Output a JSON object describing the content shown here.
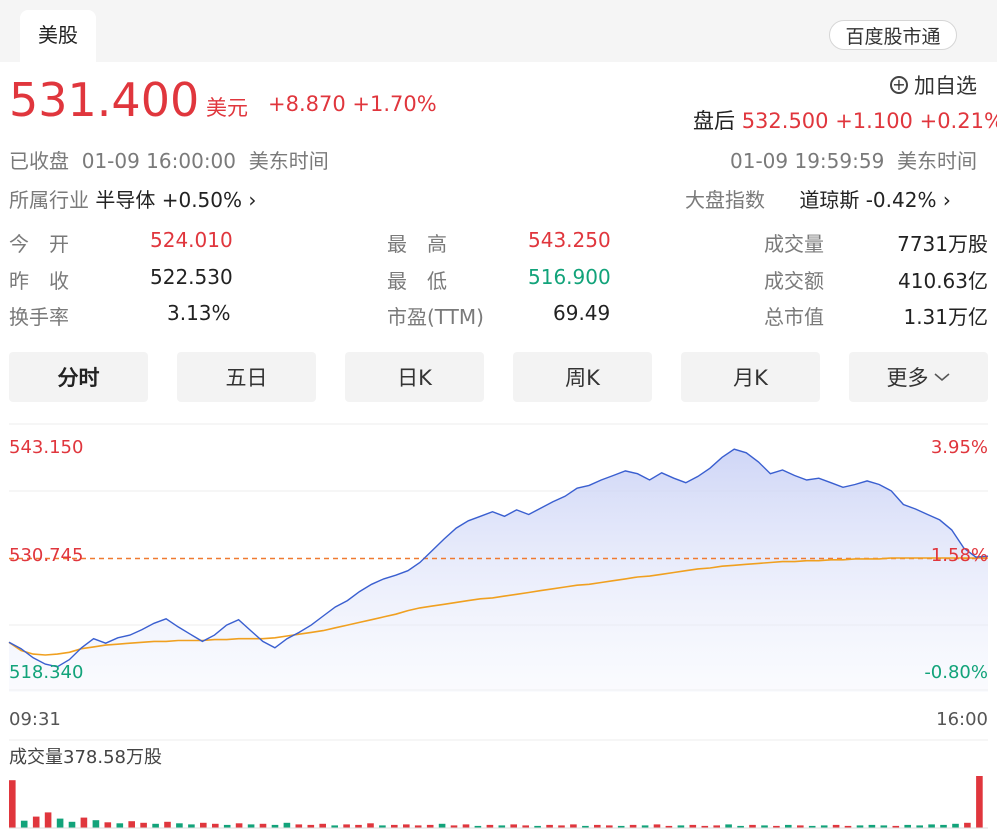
{
  "header": {
    "market_tab": "美股",
    "service_pill": "百度股市通"
  },
  "quote": {
    "price": "531.400",
    "unit": "美元",
    "change": "+8.870 +1.70%",
    "watch_label": "加自选",
    "after_hours_label": "盘后",
    "after_hours_values": "532.500 +1.100 +0.21%",
    "status_left": "已收盘  01-09 16:00:00  美东时间",
    "status_right": "01-09 19:59:59  美东时间",
    "industry_label": "所属行业",
    "industry_value": "半导体 +0.50%",
    "index_label": "大盘指数",
    "index_value": "道琼斯 -0.42%"
  },
  "stats": {
    "open_label": "今　开",
    "open": "524.010",
    "prev_label": "昨　收",
    "prev": "522.530",
    "turnover_label": "换手率",
    "turnover": "3.13%",
    "high_label": "最　高",
    "high": "543.250",
    "low_label": "最　低",
    "low": "516.900",
    "pe_label": "市盈(TTM)",
    "pe": "69.49",
    "volume_label": "成交量",
    "volume": "7731万股",
    "amount_label": "成交额",
    "amount": "410.63亿",
    "mcap_label": "总市值",
    "mcap": "1.31万亿"
  },
  "period_tabs": [
    "分时",
    "五日",
    "日K",
    "周K",
    "月K",
    "更多"
  ],
  "chart_labels": {
    "y_top_left": "543.150",
    "y_mid_left": "530.745",
    "y_bot_left": "518.340",
    "y_top_right": "3.95%",
    "y_mid_right": "1.58%",
    "y_bot_right": "-0.80%",
    "x_start": "09:31",
    "x_end": "16:00",
    "volume_caption": "成交量378.58万股"
  },
  "colors": {
    "up": "#e0363d",
    "down": "#12a37a",
    "price_line": "#3a5fd0",
    "avg_line": "#f0a020",
    "ref_line": "#f07a30"
  },
  "chart_data": {
    "type": "line",
    "x_range": [
      "09:31",
      "16:00"
    ],
    "ylim": [
      518.34,
      543.15
    ],
    "reference_price": 530.745,
    "series": [
      {
        "values": [
          521.5,
          520.8,
          519.8,
          519.1,
          518.8,
          519.6,
          520.9,
          521.9,
          521.4,
          522.0,
          522.3,
          522.9,
          523.6,
          524.1,
          523.2,
          522.4,
          521.6,
          522.3,
          523.4,
          524.0,
          522.8,
          521.6,
          520.9,
          521.9,
          522.6,
          523.4,
          524.4,
          525.4,
          526.1,
          527.1,
          527.9,
          528.5,
          528.9,
          529.4,
          530.3,
          531.6,
          532.9,
          534.1,
          534.9,
          535.4,
          535.9,
          535.4,
          536.1,
          535.6,
          536.3,
          537.0,
          537.6,
          538.5,
          538.8,
          539.4,
          539.9,
          540.4,
          540.1,
          539.4,
          540.2,
          539.6,
          539.1,
          539.8,
          540.7,
          541.9,
          542.8,
          542.4,
          541.4,
          540.1,
          540.5,
          539.9,
          539.4,
          539.6,
          539.1,
          538.6,
          538.9,
          539.3,
          538.9,
          538.2,
          536.7,
          536.2,
          535.6,
          535.0,
          533.9,
          531.9,
          530.9,
          531.0
        ]
      },
      {
        "values": [
          521.5,
          520.6,
          520.2,
          520.1,
          520.2,
          520.4,
          520.8,
          521.0,
          521.2,
          521.3,
          521.4,
          521.5,
          521.6,
          521.6,
          521.7,
          521.7,
          521.7,
          521.8,
          521.8,
          521.9,
          521.9,
          521.9,
          522.0,
          522.2,
          522.4,
          522.6,
          522.8,
          523.1,
          523.4,
          523.7,
          524.0,
          524.3,
          524.6,
          525.0,
          525.3,
          525.5,
          525.7,
          525.9,
          526.1,
          526.3,
          526.4,
          526.6,
          526.8,
          527.0,
          527.2,
          527.4,
          527.6,
          527.8,
          527.9,
          528.1,
          528.3,
          528.5,
          528.7,
          528.8,
          529.0,
          529.2,
          529.4,
          529.6,
          529.7,
          529.9,
          530.0,
          530.1,
          530.2,
          530.3,
          530.4,
          530.4,
          530.5,
          530.5,
          530.6,
          530.6,
          530.7,
          530.7,
          530.7,
          530.8,
          530.8,
          530.8,
          530.8,
          530.8,
          530.8,
          530.8,
          530.8,
          530.8
        ]
      }
    ],
    "volume_series": {
      "values": [
        92,
        14,
        22,
        30,
        18,
        12,
        20,
        15,
        11,
        9,
        13,
        10,
        8,
        12,
        9,
        7,
        10,
        8,
        6,
        9,
        7,
        8,
        6,
        10,
        7,
        6,
        8,
        5,
        7,
        6,
        9,
        5,
        6,
        7,
        5,
        6,
        8,
        5,
        7,
        4,
        6,
        5,
        7,
        5,
        4,
        6,
        5,
        7,
        4,
        6,
        5,
        4,
        6,
        5,
        7,
        4,
        5,
        6,
        4,
        5,
        7,
        4,
        6,
        5,
        4,
        6,
        5,
        4,
        5,
        6,
        4,
        5,
        6,
        5,
        4,
        6,
        5,
        7,
        6,
        8,
        10,
        100
      ],
      "up": [
        1,
        0,
        1,
        1,
        0,
        0,
        1,
        0,
        1,
        0,
        1,
        1,
        0,
        1,
        0,
        0,
        1,
        1,
        0,
        1,
        0,
        1,
        0,
        0,
        1,
        1,
        1,
        0,
        1,
        1,
        1,
        0,
        1,
        1,
        1,
        1,
        0,
        1,
        1,
        0,
        1,
        0,
        1,
        1,
        0,
        1,
        1,
        1,
        0,
        1,
        1,
        0,
        1,
        0,
        1,
        1,
        0,
        1,
        1,
        1,
        0,
        0,
        1,
        0,
        1,
        0,
        1,
        0,
        0,
        1,
        1,
        0,
        0,
        0,
        1,
        0,
        0,
        0,
        0,
        0,
        1,
        1
      ]
    }
  }
}
